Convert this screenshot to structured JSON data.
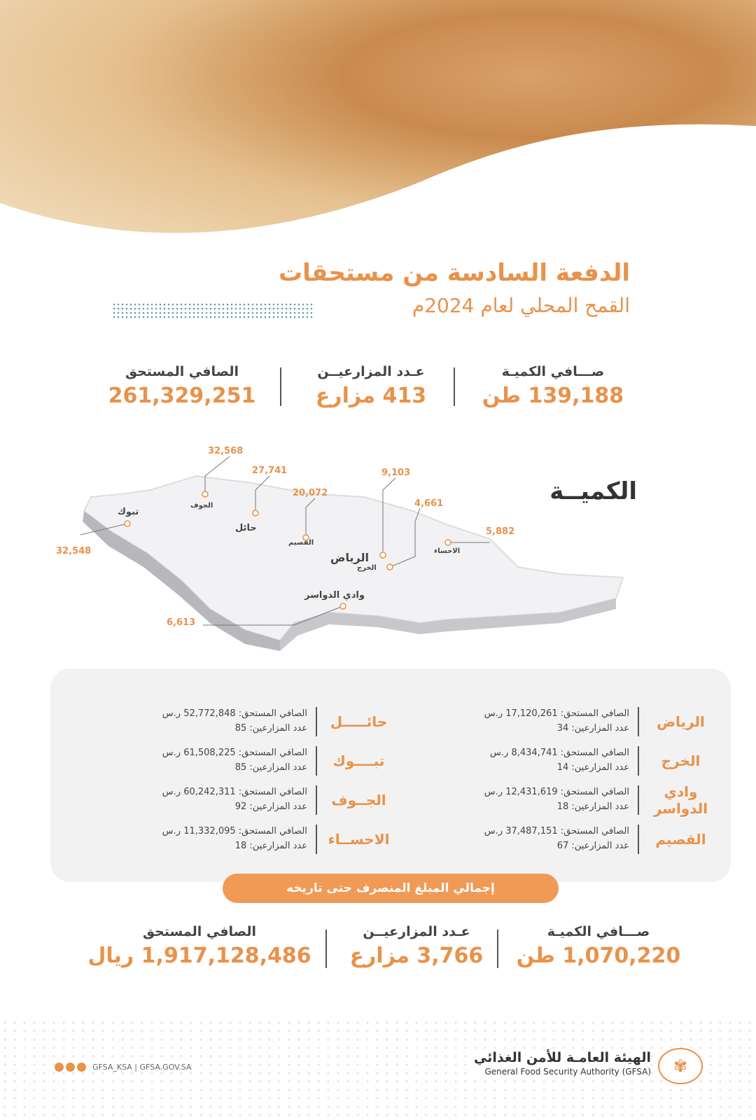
{
  "header": {
    "title": "الدفعة السادسة من مستحقات",
    "subtitle": "القمح المحلي لعام 2024م"
  },
  "summary": [
    {
      "label": "صـــافي الكميـة",
      "value": "139,188 طن"
    },
    {
      "label": "عـدد المزارعيــن",
      "value": "413 مزارع"
    },
    {
      "label": "الصافي المستحق",
      "value": "261,329,251"
    }
  ],
  "map": {
    "title": "الكميــة",
    "regions": [
      {
        "name": "الجوف",
        "quantity": "32,568"
      },
      {
        "name": "حائل",
        "quantity": "27,741"
      },
      {
        "name": "القصيم",
        "quantity": "20,072"
      },
      {
        "name": "الرياض",
        "quantity": "9,103"
      },
      {
        "name": "الخرج",
        "quantity": "4,661"
      },
      {
        "name": "الاحساء",
        "quantity": "5,882"
      },
      {
        "name": "تبوك",
        "quantity": "32,548"
      },
      {
        "name": "وادي الدواسر",
        "quantity": "6,613"
      }
    ]
  },
  "details": {
    "amount_label": "الصافي المستحق:",
    "farmers_label": "عدد المزارعين:",
    "currency": "ر.س",
    "right": [
      {
        "name": "الرياض",
        "amount": "17,120,261",
        "farmers": "34"
      },
      {
        "name": "الخرج",
        "amount": "8,434,741",
        "farmers": "14"
      },
      {
        "name": "وادي الدواسر",
        "amount": "12,431,619",
        "farmers": "18"
      },
      {
        "name": "القصيم",
        "amount": "37,487,151",
        "farmers": "67"
      }
    ],
    "left": [
      {
        "name": "حائـــــل",
        "amount": "52,772,848",
        "farmers": "85"
      },
      {
        "name": "تبــــوك",
        "amount": "61,508,225",
        "farmers": "85"
      },
      {
        "name": "الجــوف",
        "amount": "60,242,311",
        "farmers": "92"
      },
      {
        "name": "الاحســاء",
        "amount": "11,332,095",
        "farmers": "18"
      }
    ]
  },
  "totals": {
    "banner": "إجمالي المبلغ المنصرف حتى تاريخه",
    "items": [
      {
        "label": "صـــافي الكميـة",
        "value": "1,070,220 طن"
      },
      {
        "label": "عـدد المزارعيــن",
        "value": "3,766 مزارع"
      },
      {
        "label": "الصافي المستحق",
        "value": "1,917,128,486 ريال"
      }
    ]
  },
  "footer": {
    "org_ar": "الهيئة العامـة للأمن الغذائي",
    "org_en": "General Food Security Authority (GFSA)",
    "social": "GFSA_KSA | GFSA.GOV.SA"
  },
  "colors": {
    "accent": "#e8924a",
    "panel": "#f2f2f3"
  }
}
